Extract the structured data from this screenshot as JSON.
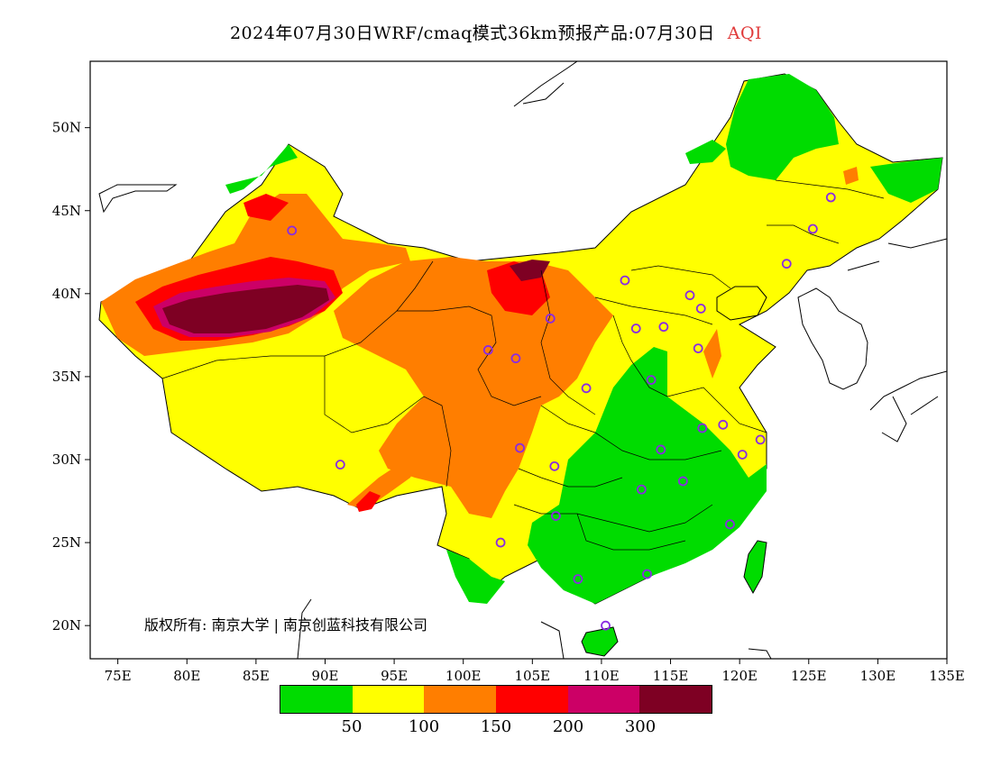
{
  "title": {
    "text": "2024年07月30日WRF/cmaq模式36km预报产品:07月30日",
    "variable": "AQI",
    "variable_color": "#e03a3a"
  },
  "map": {
    "lon_range": [
      73,
      135
    ],
    "lat_range": [
      18,
      54
    ],
    "x_ticks": [
      "75E",
      "80E",
      "85E",
      "90E",
      "95E",
      "100E",
      "105E",
      "110E",
      "115E",
      "120E",
      "125E",
      "130E",
      "135E"
    ],
    "y_ticks": [
      "50N",
      "45N",
      "40N",
      "35N",
      "30N",
      "25N",
      "20N"
    ],
    "copyright": "版权所有: 南京大学 | 南京创蓝科技有限公司"
  },
  "legend": {
    "colors": [
      "#00dc00",
      "#ffff00",
      "#ff7e00",
      "#ff0000",
      "#cc0066",
      "#7e0023"
    ],
    "labels": [
      "50",
      "100",
      "150",
      "200",
      "300"
    ]
  },
  "stations": [
    [
      87.6,
      43.8
    ],
    [
      91.1,
      29.7
    ],
    [
      101.8,
      36.6
    ],
    [
      103.8,
      36.1
    ],
    [
      106.3,
      38.5
    ],
    [
      104.1,
      30.7
    ],
    [
      106.6,
      29.6
    ],
    [
      106.7,
      26.6
    ],
    [
      102.7,
      25.0
    ],
    [
      108.9,
      34.3
    ],
    [
      111.7,
      40.8
    ],
    [
      112.5,
      37.9
    ],
    [
      114.5,
      38.0
    ],
    [
      116.4,
      39.9
    ],
    [
      117.2,
      39.1
    ],
    [
      117.0,
      36.7
    ],
    [
      113.6,
      34.8
    ],
    [
      114.3,
      30.6
    ],
    [
      112.9,
      28.2
    ],
    [
      115.9,
      28.7
    ],
    [
      117.3,
      31.9
    ],
    [
      118.8,
      32.1
    ],
    [
      120.2,
      30.3
    ],
    [
      121.5,
      31.2
    ],
    [
      119.3,
      26.1
    ],
    [
      113.3,
      23.1
    ],
    [
      108.3,
      22.8
    ],
    [
      110.3,
      20.0
    ],
    [
      123.4,
      41.8
    ],
    [
      125.3,
      43.9
    ],
    [
      126.6,
      45.8
    ]
  ]
}
